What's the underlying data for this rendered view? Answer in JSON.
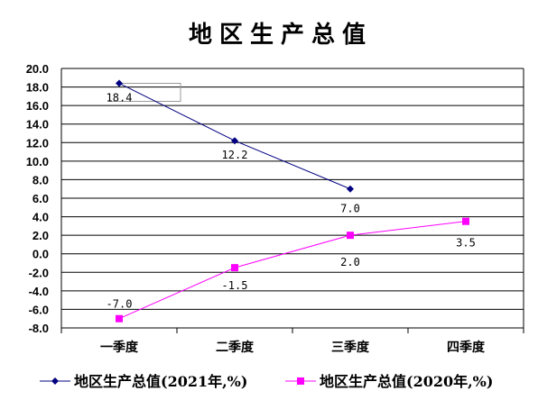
{
  "chart_data": {
    "type": "line",
    "title": "地区生产总值",
    "categories": [
      "一季度",
      "二季度",
      "三季度",
      "四季度"
    ],
    "ylim": [
      -8.0,
      20.0
    ],
    "yticks": [
      "20.0",
      "18.0",
      "16.0",
      "14.0",
      "12.0",
      "10.0",
      "8.0",
      "6.0",
      "4.0",
      "2.0",
      "0.0",
      "-2.0",
      "-4.0",
      "-6.0",
      "-8.0"
    ],
    "grid": true,
    "legend_position": "bottom",
    "series": [
      {
        "name": "地区生产总值(2021年,%)",
        "values": [
          18.4,
          12.2,
          7.0,
          null
        ],
        "labels": [
          "18.4",
          "12.2",
          "7.0",
          ""
        ],
        "color": "#000080",
        "marker": "diamond"
      },
      {
        "name": "地区生产总值(2020年,%)",
        "values": [
          -7.0,
          -1.5,
          2.0,
          3.5
        ],
        "labels": [
          "-7.0",
          "-1.5",
          "2.0",
          "3.5"
        ],
        "color": "#ff00ff",
        "marker": "square"
      }
    ]
  }
}
